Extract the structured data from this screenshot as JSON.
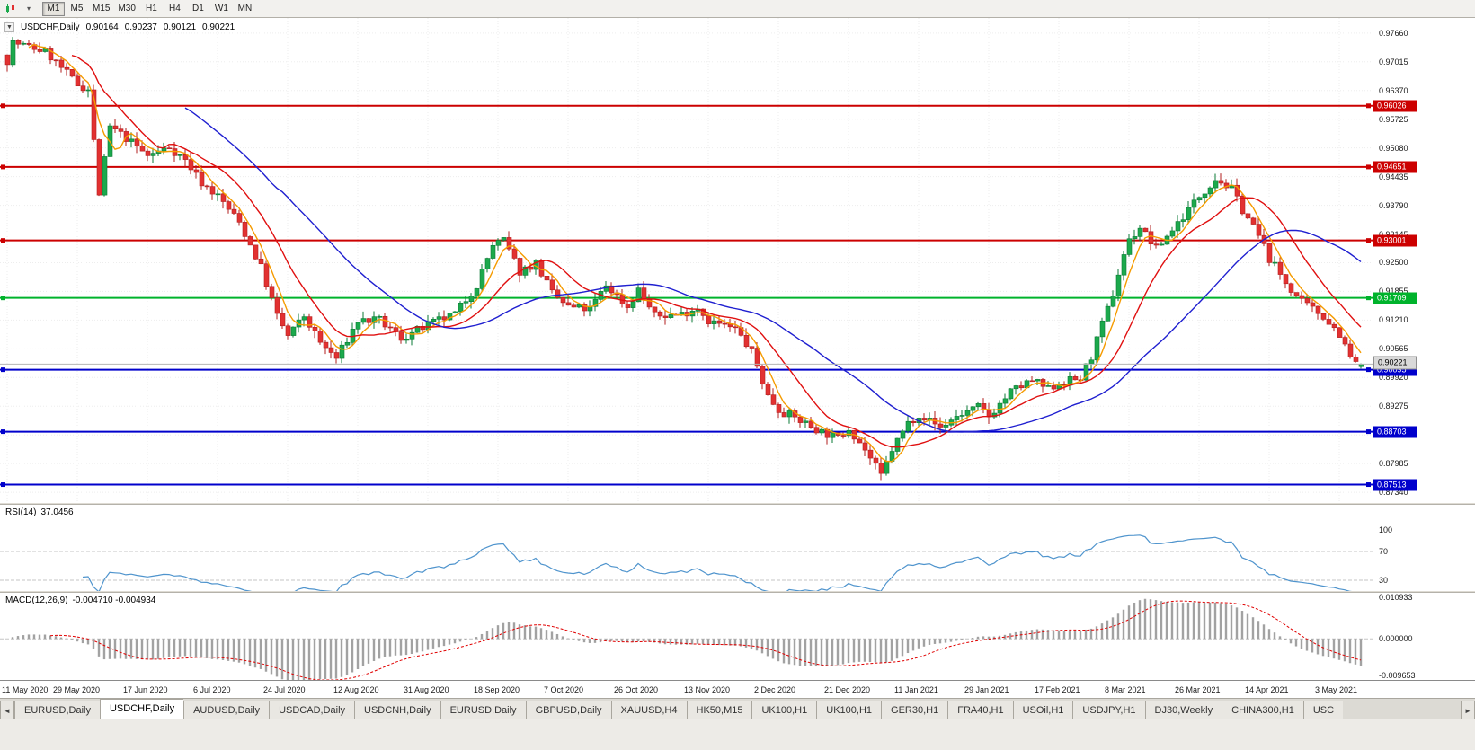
{
  "icons": {
    "dropdown": "▾",
    "collapse": "▼",
    "scroll_up": "▲",
    "tab_left": "◄",
    "tab_right": "►"
  },
  "toolbar": {
    "timeframes": [
      {
        "label": "M1",
        "active": true
      },
      {
        "label": "M5"
      },
      {
        "label": "M15"
      },
      {
        "label": "M30"
      },
      {
        "label": "H1"
      },
      {
        "label": "H4"
      },
      {
        "label": "D1"
      },
      {
        "label": "W1"
      },
      {
        "label": "MN"
      }
    ]
  },
  "chart": {
    "symbol": "USDCHF,Daily",
    "ohlc": {
      "open": "0.90164",
      "high": "0.90237",
      "low": "0.90121",
      "close": "0.90221"
    },
    "price_axis": [
      "0.97660",
      "0.97015",
      "0.96370",
      "0.95725",
      "0.95080",
      "0.94435",
      "0.93790",
      "0.93145",
      "0.92500",
      "0.91855",
      "0.91210",
      "0.90565",
      "0.89920",
      "0.89275",
      "0.88630",
      "0.87985",
      "0.87340"
    ],
    "hlines": [
      {
        "label": "0.96026",
        "price": 0.96026,
        "color": "#cc0000",
        "type": "resistance"
      },
      {
        "label": "0.94651",
        "price": 0.94651,
        "color": "#cc0000",
        "type": "resistance"
      },
      {
        "label": "0.93001",
        "price": 0.93001,
        "color": "#cc0000",
        "type": "resistance"
      },
      {
        "label": "0.91709",
        "price": 0.91709,
        "color": "#00b32c",
        "type": "level"
      },
      {
        "label": "0.90095",
        "price": 0.90095,
        "color": "#0000cc",
        "type": "support"
      },
      {
        "label": "0.88703",
        "price": 0.88703,
        "color": "#0000cc",
        "type": "support"
      },
      {
        "label": "0.87513",
        "price": 0.87513,
        "color": "#0000cc",
        "type": "support"
      }
    ],
    "current_price": {
      "label": "0.90221",
      "price": 0.90221
    },
    "date_axis": [
      "11 May 2020",
      "29 May 2020",
      "17 Jun 2020",
      "6 Jul 2020",
      "24 Jul 2020",
      "12 Aug 2020",
      "31 Aug 2020",
      "18 Sep 2020",
      "7 Oct 2020",
      "26 Oct 2020",
      "13 Nov 2020",
      "2 Dec 2020",
      "21 Dec 2020",
      "11 Jan 2021",
      "29 Jan 2021",
      "17 Feb 2021",
      "8 Mar 2021",
      "26 Mar 2021",
      "14 Apr 2021",
      "3 May 2021"
    ]
  },
  "rsi": {
    "name": "RSI(14)",
    "value": "37.0456",
    "axis": [
      "100",
      "70",
      "30"
    ],
    "levels": [
      70,
      30
    ],
    "line_color": "#4f94cd"
  },
  "macd": {
    "name": "MACD(12,26,9)",
    "values": "-0.004710 -0.004934",
    "axis": [
      "0.010933",
      "0.000000",
      "-0.009653"
    ],
    "histogram_color": "#a2a2a2",
    "signal_color": "#e00000"
  },
  "tabs": {
    "items": [
      {
        "label": "EURUSD,Daily"
      },
      {
        "label": "USDCHF,Daily",
        "active": true
      },
      {
        "label": "AUDUSD,Daily"
      },
      {
        "label": "USDCAD,Daily"
      },
      {
        "label": "USDCNH,Daily"
      },
      {
        "label": "EURUSD,Daily"
      },
      {
        "label": "GBPUSD,Daily"
      },
      {
        "label": "XAUUSD,H4"
      },
      {
        "label": "HK50,M15"
      },
      {
        "label": "UK100,H1"
      },
      {
        "label": "UK100,H1"
      },
      {
        "label": "GER30,H1"
      },
      {
        "label": "FRA40,H1"
      },
      {
        "label": "USOil,H1"
      },
      {
        "label": "USDJPY,H1"
      },
      {
        "label": "DJ30,Weekly"
      },
      {
        "label": "CHINA300,H1"
      },
      {
        "label": "USC"
      }
    ]
  },
  "chart_data": {
    "type": "candlestick",
    "symbol": "USDCHF",
    "timeframe": "Daily",
    "visible_ohlc": {
      "open": 0.90164,
      "high": 0.90237,
      "low": 0.90121,
      "close": 0.90221
    },
    "ylim": [
      0.871,
      0.98
    ],
    "candle_count": 252,
    "x_tick_step": 13,
    "close_anchors": [
      [
        0,
        0.9705
      ],
      [
        1,
        0.9745
      ],
      [
        7,
        0.9725
      ],
      [
        13,
        0.965
      ],
      [
        15,
        0.964
      ],
      [
        17,
        0.9405
      ],
      [
        19,
        0.9555
      ],
      [
        22,
        0.953
      ],
      [
        26,
        0.949
      ],
      [
        30,
        0.951
      ],
      [
        33,
        0.948
      ],
      [
        36,
        0.943
      ],
      [
        39,
        0.94
      ],
      [
        43,
        0.934
      ],
      [
        47,
        0.924
      ],
      [
        50,
        0.913
      ],
      [
        52,
        0.9085
      ],
      [
        55,
        0.913
      ],
      [
        58,
        0.907
      ],
      [
        61,
        0.9035
      ],
      [
        65,
        0.912
      ],
      [
        69,
        0.912
      ],
      [
        73,
        0.908
      ],
      [
        78,
        0.911
      ],
      [
        83,
        0.9135
      ],
      [
        87,
        0.92
      ],
      [
        90,
        0.929
      ],
      [
        92,
        0.93
      ],
      [
        95,
        0.923
      ],
      [
        98,
        0.925
      ],
      [
        101,
        0.918
      ],
      [
        104,
        0.915
      ],
      [
        108,
        0.9145
      ],
      [
        111,
        0.92
      ],
      [
        115,
        0.915
      ],
      [
        117,
        0.919
      ],
      [
        120,
        0.913
      ],
      [
        125,
        0.9135
      ],
      [
        128,
        0.915
      ],
      [
        130,
        0.912
      ],
      [
        135,
        0.91
      ],
      [
        138,
        0.905
      ],
      [
        141,
        0.895
      ],
      [
        143,
        0.892
      ],
      [
        147,
        0.8895
      ],
      [
        151,
        0.887
      ],
      [
        154,
        0.8855
      ],
      [
        156,
        0.888
      ],
      [
        159,
        0.883
      ],
      [
        162,
        0.877
      ],
      [
        164,
        0.883
      ],
      [
        167,
        0.889
      ],
      [
        169,
        0.891
      ],
      [
        173,
        0.888
      ],
      [
        176,
        0.8905
      ],
      [
        180,
        0.8925
      ],
      [
        182,
        0.8905
      ],
      [
        186,
        0.896
      ],
      [
        190,
        0.8985
      ],
      [
        193,
        0.8965
      ],
      [
        195,
        0.898
      ],
      [
        199,
        0.899
      ],
      [
        201,
        0.904
      ],
      [
        205,
        0.918
      ],
      [
        207,
        0.927
      ],
      [
        208,
        0.93
      ],
      [
        210,
        0.933
      ],
      [
        213,
        0.928
      ],
      [
        215,
        0.931
      ],
      [
        219,
        0.937
      ],
      [
        221,
        0.94
      ],
      [
        224,
        0.944
      ],
      [
        227,
        0.9415
      ],
      [
        229,
        0.937
      ],
      [
        232,
        0.931
      ],
      [
        234,
        0.926
      ],
      [
        237,
        0.9205
      ],
      [
        240,
        0.916
      ],
      [
        244,
        0.913
      ],
      [
        247,
        0.909
      ],
      [
        249,
        0.9035
      ],
      [
        251,
        0.9022
      ]
    ],
    "moving_averages": [
      {
        "window": 5,
        "color": "#f59b00"
      },
      {
        "window": 13,
        "color": "#e01010"
      },
      {
        "window": 34,
        "color": "#1f1fd0"
      }
    ],
    "up_color": "#1ba94c",
    "down_color": "#e23131",
    "rsi": {
      "period": 14,
      "last": 37.0456,
      "ylim": [
        15,
        135
      ]
    },
    "macd": {
      "fast": 12,
      "slow": 26,
      "signal": 9,
      "last_macd": -0.00471,
      "last_signal": -0.004934,
      "ylim": [
        -0.01,
        0.0112
      ]
    }
  }
}
